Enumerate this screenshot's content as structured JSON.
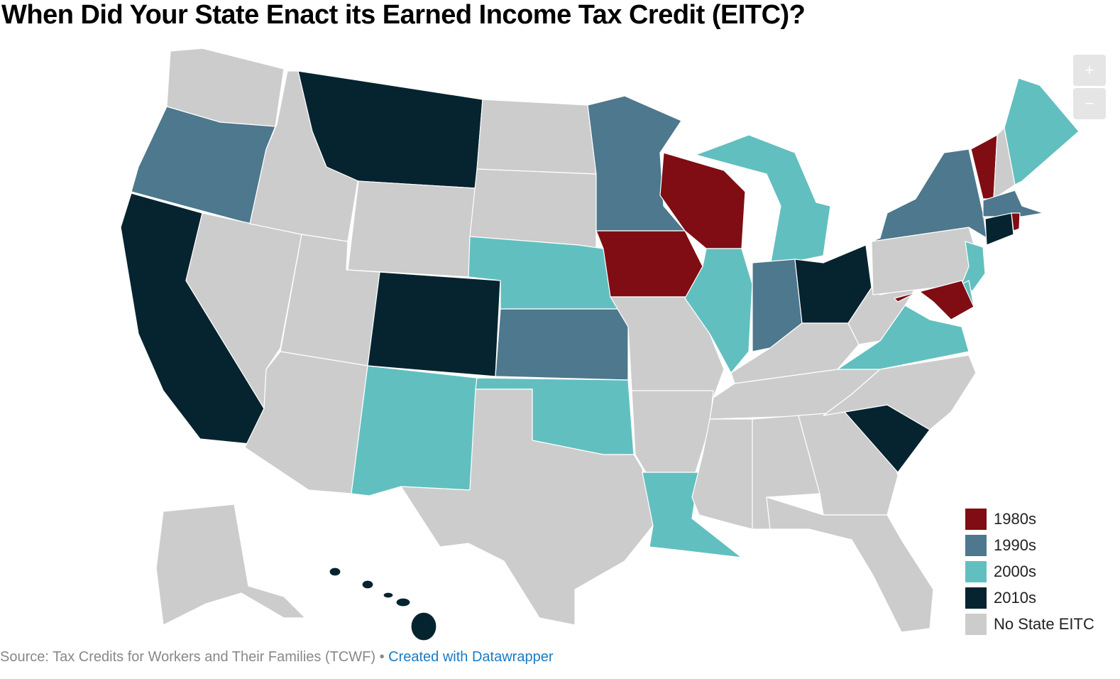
{
  "title": "When Did Your State Enact its Earned Income Tax Credit (EITC)?",
  "zoom_in": "+",
  "zoom_out": "−",
  "legend": [
    {
      "label": "1980s",
      "color": "#7f0d13"
    },
    {
      "label": "1990s",
      "color": "#4d788d"
    },
    {
      "label": "2000s",
      "color": "#62bfbf"
    },
    {
      "label": "2010s",
      "color": "#06242f"
    },
    {
      "label": "No State EITC",
      "color": "#cccccc"
    }
  ],
  "regions": [
    "No State EITC",
    "1990s",
    "2010s",
    "No State EITC",
    "No State EITC",
    "2010s",
    "No State EITC",
    "No State EITC",
    "No State EITC",
    "2010s",
    "2000s",
    "No State EITC",
    "No State EITC",
    "2000s",
    "1990s",
    "2000s",
    "No State EITC",
    "1990s",
    "1980s",
    "No State EITC",
    "No State EITC",
    "2000s",
    "1980s",
    "2000s",
    "2000s",
    "1990s",
    "2010s",
    "No State EITC",
    "No State EITC",
    "No State EITC",
    "No State EITC",
    "No State EITC",
    "No State EITC",
    "2010s",
    "No State EITC",
    "2000s",
    "No State EITC",
    "No State EITC",
    "1990s",
    "1980s",
    "No State EITC",
    "2000s",
    "1990s",
    "2010s",
    "1980s",
    "2000s",
    "2000s",
    "1980s",
    "No State EITC",
    "2010s"
  ],
  "source": "Source: Tax Credits for Workers and Their Families (TCWF) • ",
  "credit": "Created with Datawrapper"
}
